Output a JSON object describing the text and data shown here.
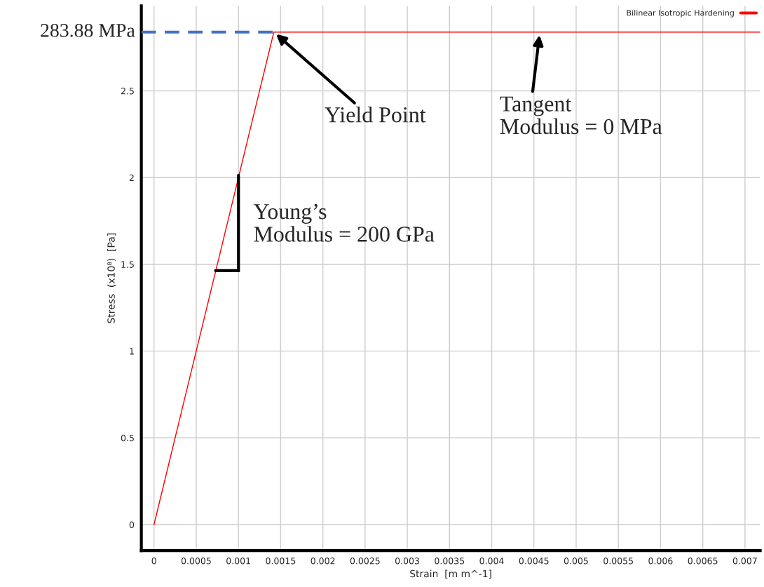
{
  "chart_data": {
    "type": "line",
    "xlabel": "Strain  [m m^-1]",
    "ylabel": "Stress  (x10⁸)  [Pa]",
    "x": [
      0,
      0.0014194,
      0.00718
    ],
    "series": [
      {
        "name": "Bilinear Isotropic Hardening",
        "color": "#ff0000",
        "values": [
          0,
          2.8388,
          2.8388
        ]
      }
    ],
    "xlim": [
      -0.00015,
      0.00718
    ],
    "ylim": [
      -0.15,
      2.99
    ],
    "xticks": [
      0,
      0.0005,
      0.001,
      0.0015,
      0.002,
      0.0025,
      0.003,
      0.0035,
      0.004,
      0.0045,
      0.005,
      0.0055,
      0.006,
      0.0065,
      0.007
    ],
    "yticks": [
      0,
      0.5,
      1,
      1.5,
      2,
      2.5
    ],
    "ref_lines": [
      {
        "axis": "y",
        "value": 2.8388,
        "label": "283.88 MPa",
        "color": "#4472c4",
        "line_style": "dashed"
      }
    ],
    "annotations": [
      {
        "text": "Yield Point",
        "x": 0.0014194,
        "y": 2.8388
      },
      {
        "text": "Tangent\nModulus = 0 MPa",
        "x": 0.00457,
        "y": 2.8388
      },
      "Young’s\nModulus = 200 GPa"
    ],
    "grid": true,
    "legend": "top right",
    "marker": "none",
    "line_style": "solid"
  }
}
